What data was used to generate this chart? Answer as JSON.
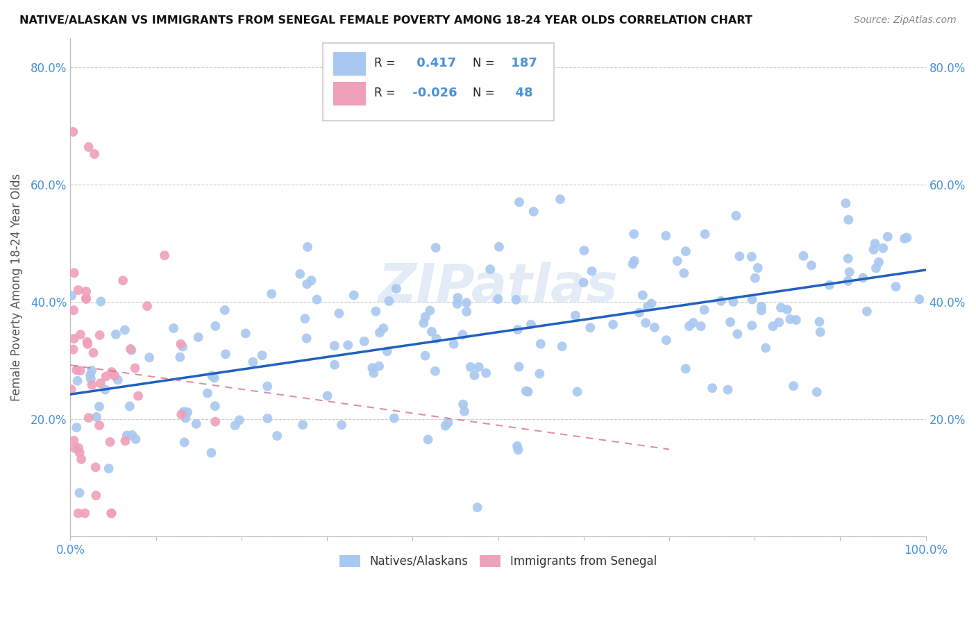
{
  "title": "NATIVE/ALASKAN VS IMMIGRANTS FROM SENEGAL FEMALE POVERTY AMONG 18-24 YEAR OLDS CORRELATION CHART",
  "source": "Source: ZipAtlas.com",
  "ylabel": "Female Poverty Among 18-24 Year Olds",
  "xlim": [
    0.0,
    1.0
  ],
  "ylim": [
    0.0,
    0.85
  ],
  "blue_color": "#a8c8f0",
  "blue_line_color": "#2060c0",
  "pink_color": "#f0a0b8",
  "pink_line_color": "#d06080",
  "grid_color": "#cccccc",
  "background_color": "#ffffff",
  "watermark": "ZIPatlas",
  "R_blue": 0.417,
  "N_blue": 187,
  "R_pink": -0.026,
  "N_pink": 48,
  "legend_label_blue": "Natives/Alaskans",
  "legend_label_pink": "Immigrants from Senegal",
  "tick_color": "#4a90d9",
  "ylabel_color": "#555555"
}
